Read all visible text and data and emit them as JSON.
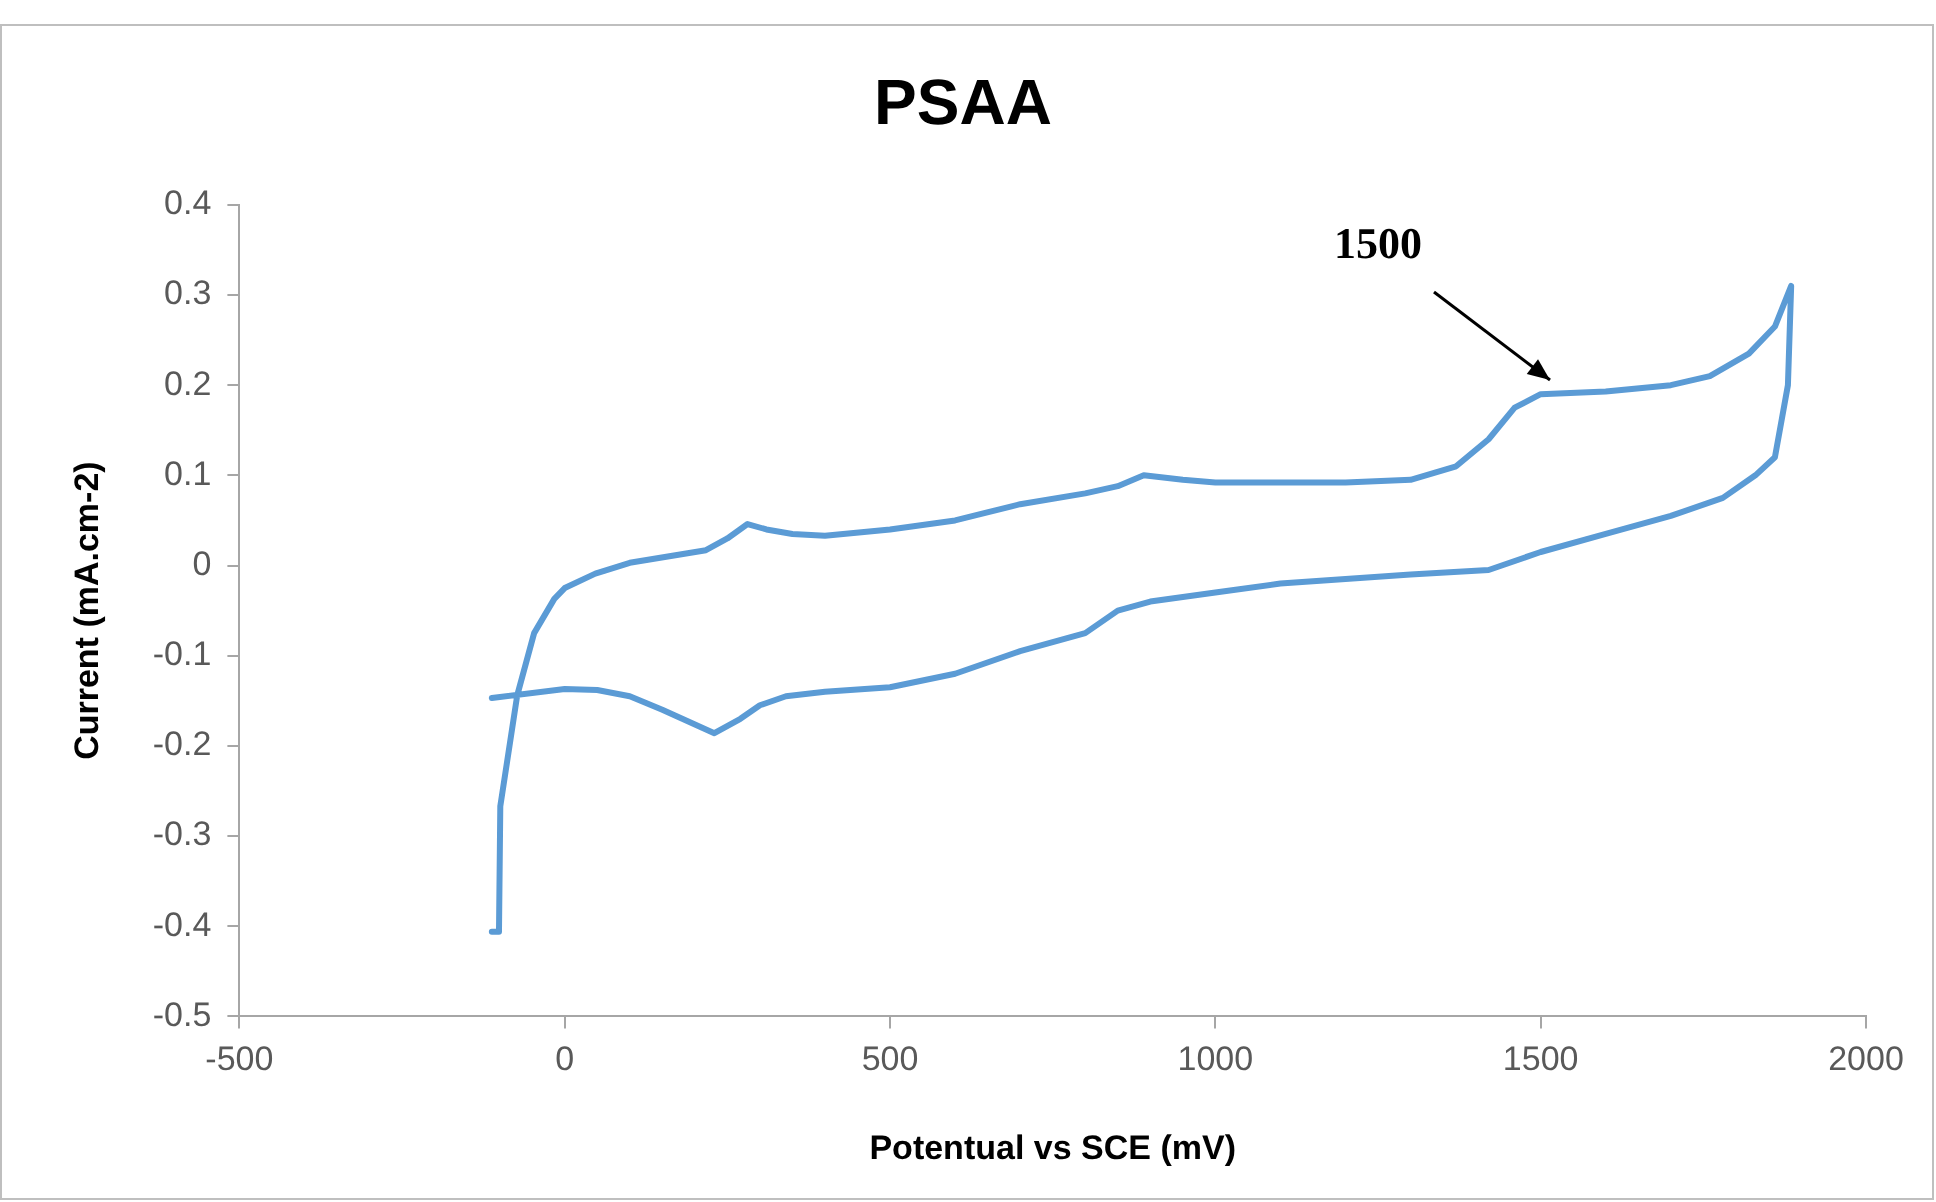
{
  "chart_data": {
    "type": "line",
    "title": "PSAA",
    "xlabel": "Potentual vs SCE (mV)",
    "ylabel": "Current (mA.cm-2)",
    "xlim": [
      -500,
      2000
    ],
    "xticks": [
      -500,
      0,
      500,
      1000,
      1500,
      2000
    ],
    "ylim": [
      -0.5,
      0.4
    ],
    "yticks": [
      -0.5,
      -0.4,
      -0.3,
      -0.2,
      -0.1,
      0,
      0.1,
      0.2,
      0.3,
      0.4
    ],
    "grid": false,
    "legend": false,
    "marker": "none",
    "line_style": "solid",
    "annotations": [
      "1500"
    ],
    "series": [
      {
        "color": "#5b9bd5",
        "x": [
          -112,
          -101,
          -99,
          -73,
          -47,
          -16,
          0,
          47,
          100,
          217,
          250,
          281,
          310,
          350,
          400,
          500,
          600,
          700,
          800,
          850,
          890,
          950,
          1000,
          1100,
          1200,
          1300,
          1370,
          1420,
          1460,
          1500,
          1600,
          1700,
          1760,
          1820,
          1860,
          1885,
          1880,
          1860,
          1830,
          1780,
          1700,
          1600,
          1500,
          1420,
          1300,
          1200,
          1100,
          1000,
          900,
          850,
          800,
          700,
          600,
          500,
          400,
          340,
          300,
          270,
          230,
          150,
          100,
          50,
          0,
          -112
        ],
        "values": [
          -0.406,
          -0.406,
          -0.267,
          -0.144,
          -0.075,
          -0.037,
          -0.025,
          -0.009,
          0.003,
          0.017,
          0.03,
          0.046,
          0.04,
          0.035,
          0.033,
          0.04,
          0.05,
          0.068,
          0.08,
          0.088,
          0.1,
          0.095,
          0.092,
          0.092,
          0.092,
          0.095,
          0.11,
          0.14,
          0.175,
          0.19,
          0.193,
          0.2,
          0.21,
          0.235,
          0.265,
          0.31,
          0.2,
          0.12,
          0.1,
          0.075,
          0.055,
          0.035,
          0.015,
          -0.005,
          -0.01,
          -0.015,
          -0.02,
          -0.03,
          -0.04,
          -0.05,
          -0.075,
          -0.095,
          -0.12,
          -0.135,
          -0.14,
          -0.145,
          -0.155,
          -0.17,
          -0.186,
          -0.16,
          -0.145,
          -0.138,
          -0.137,
          -0.147
        ]
      }
    ]
  }
}
